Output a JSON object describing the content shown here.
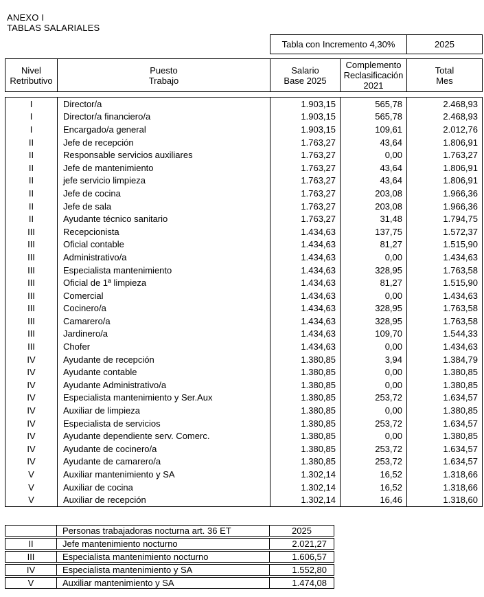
{
  "header": {
    "annex": "ANEXO I",
    "subtitle": "TABLAS SALARIALES"
  },
  "increment_banner": {
    "label": "Tabla con Incremento 4,30%",
    "year": "2025"
  },
  "main_table": {
    "headers": {
      "level": "Nivel\nRetributivo",
      "puesto": "Puesto\nTrabajo",
      "salario": "Salario\nBase 2025",
      "complemento": "Complemento\nReclasificación\n2021",
      "total": "Total\nMes"
    },
    "rows": [
      {
        "level": "I",
        "puesto": "Director/a",
        "salario": "1.903,15",
        "complemento": "565,78",
        "total": "2.468,93"
      },
      {
        "level": "I",
        "puesto": "Director/a financiero/a",
        "salario": "1.903,15",
        "complemento": "565,78",
        "total": "2.468,93"
      },
      {
        "level": "I",
        "puesto": "Encargado/a general",
        "salario": "1.903,15",
        "complemento": "109,61",
        "total": "2.012,76"
      },
      {
        "level": "II",
        "puesto": "Jefe de recepción",
        "salario": "1.763,27",
        "complemento": "43,64",
        "total": "1.806,91"
      },
      {
        "level": "II",
        "puesto": "Responsable servicios auxiliares",
        "salario": "1.763,27",
        "complemento": "0,00",
        "total": "1.763,27"
      },
      {
        "level": "II",
        "puesto": "Jefe de mantenimiento",
        "salario": "1.763,27",
        "complemento": "43,64",
        "total": "1.806,91"
      },
      {
        "level": "II",
        "puesto": "jefe servicio limpieza",
        "salario": "1.763,27",
        "complemento": "43,64",
        "total": "1.806,91"
      },
      {
        "level": "II",
        "puesto": "Jefe de cocina",
        "salario": "1.763,27",
        "complemento": "203,08",
        "total": "1.966,36"
      },
      {
        "level": "II",
        "puesto": "Jefe de sala",
        "salario": "1.763,27",
        "complemento": "203,08",
        "total": "1.966,36"
      },
      {
        "level": "II",
        "puesto": "Ayudante técnico sanitario",
        "salario": "1.763,27",
        "complemento": "31,48",
        "total": "1.794,75"
      },
      {
        "level": "III",
        "puesto": "Recepcionista",
        "salario": "1.434,63",
        "complemento": "137,75",
        "total": "1.572,37"
      },
      {
        "level": "III",
        "puesto": "Oficial contable",
        "salario": "1.434,63",
        "complemento": "81,27",
        "total": "1.515,90"
      },
      {
        "level": "III",
        "puesto": "Administrativo/a",
        "salario": "1.434,63",
        "complemento": "0,00",
        "total": "1.434,63"
      },
      {
        "level": "III",
        "puesto": "Especialista mantenimiento",
        "salario": "1.434,63",
        "complemento": "328,95",
        "total": "1.763,58"
      },
      {
        "level": "III",
        "puesto": "Oficial de 1ª limpieza",
        "salario": "1.434,63",
        "complemento": "81,27",
        "total": "1.515,90"
      },
      {
        "level": "III",
        "puesto": "Comercial",
        "salario": "1.434,63",
        "complemento": "0,00",
        "total": "1.434,63"
      },
      {
        "level": "III",
        "puesto": "Cocinero/a",
        "salario": "1.434,63",
        "complemento": "328,95",
        "total": "1.763,58"
      },
      {
        "level": "III",
        "puesto": "Camarero/a",
        "salario": "1.434,63",
        "complemento": "328,95",
        "total": "1.763,58"
      },
      {
        "level": "III",
        "puesto": "Jardinero/a",
        "salario": "1.434,63",
        "complemento": "109,70",
        "total": "1.544,33"
      },
      {
        "level": "III",
        "puesto": "Chofer",
        "salario": "1.434,63",
        "complemento": "0,00",
        "total": "1.434,63"
      },
      {
        "level": "IV",
        "puesto": "Ayudante de recepción",
        "salario": "1.380,85",
        "complemento": "3,94",
        "total": "1.384,79"
      },
      {
        "level": "IV",
        "puesto": "Ayudante contable",
        "salario": "1.380,85",
        "complemento": "0,00",
        "total": "1.380,85"
      },
      {
        "level": "IV",
        "puesto": "Ayudante Administrativo/a",
        "salario": "1.380,85",
        "complemento": "0,00",
        "total": "1.380,85"
      },
      {
        "level": "IV",
        "puesto": "Especialista mantenimiento y Ser.Aux",
        "salario": "1.380,85",
        "complemento": "253,72",
        "total": "1.634,57"
      },
      {
        "level": "IV",
        "puesto": "Auxiliar de limpieza",
        "salario": "1.380,85",
        "complemento": "0,00",
        "total": "1.380,85"
      },
      {
        "level": "IV",
        "puesto": "Especialista de servicios",
        "salario": "1.380,85",
        "complemento": "253,72",
        "total": "1.634,57"
      },
      {
        "level": "IV",
        "puesto": "Ayudante dependiente serv. Comerc.",
        "salario": "1.380,85",
        "complemento": "0,00",
        "total": "1.380,85"
      },
      {
        "level": "IV",
        "puesto": "Ayudante de cocinero/a",
        "salario": "1.380,85",
        "complemento": "253,72",
        "total": "1.634,57"
      },
      {
        "level": "IV",
        "puesto": "Ayudante de camarero/a",
        "salario": "1.380,85",
        "complemento": "253,72",
        "total": "1.634,57"
      },
      {
        "level": "V",
        "puesto": "Auxiliar mantenimiento y SA",
        "salario": "1.302,14",
        "complemento": "16,52",
        "total": "1.318,66"
      },
      {
        "level": "V",
        "puesto": "Auxiliar de cocina",
        "salario": "1.302,14",
        "complemento": "16,52",
        "total": "1.318,66"
      },
      {
        "level": "V",
        "puesto": "Auxiliar de recepción",
        "salario": "1.302,14",
        "complemento": "16,46",
        "total": "1.318,60"
      }
    ]
  },
  "night_table": {
    "header": {
      "level": "",
      "label": "Personas trabajadoras nocturna art. 36 ET",
      "year": "2025"
    },
    "rows": [
      {
        "level": "II",
        "puesto": "Jefe mantenimiento nocturno",
        "value": "2.021,27"
      },
      {
        "level": "III",
        "puesto": "Especialista mantenimiento nocturno",
        "value": "1.606,57"
      },
      {
        "level": "IV",
        "puesto": "Especialista mantenimiento y SA",
        "value": "1.552,80"
      },
      {
        "level": "V",
        "puesto": "Auxiliar mantenimiento y SA",
        "value": "1.474,08"
      }
    ]
  }
}
